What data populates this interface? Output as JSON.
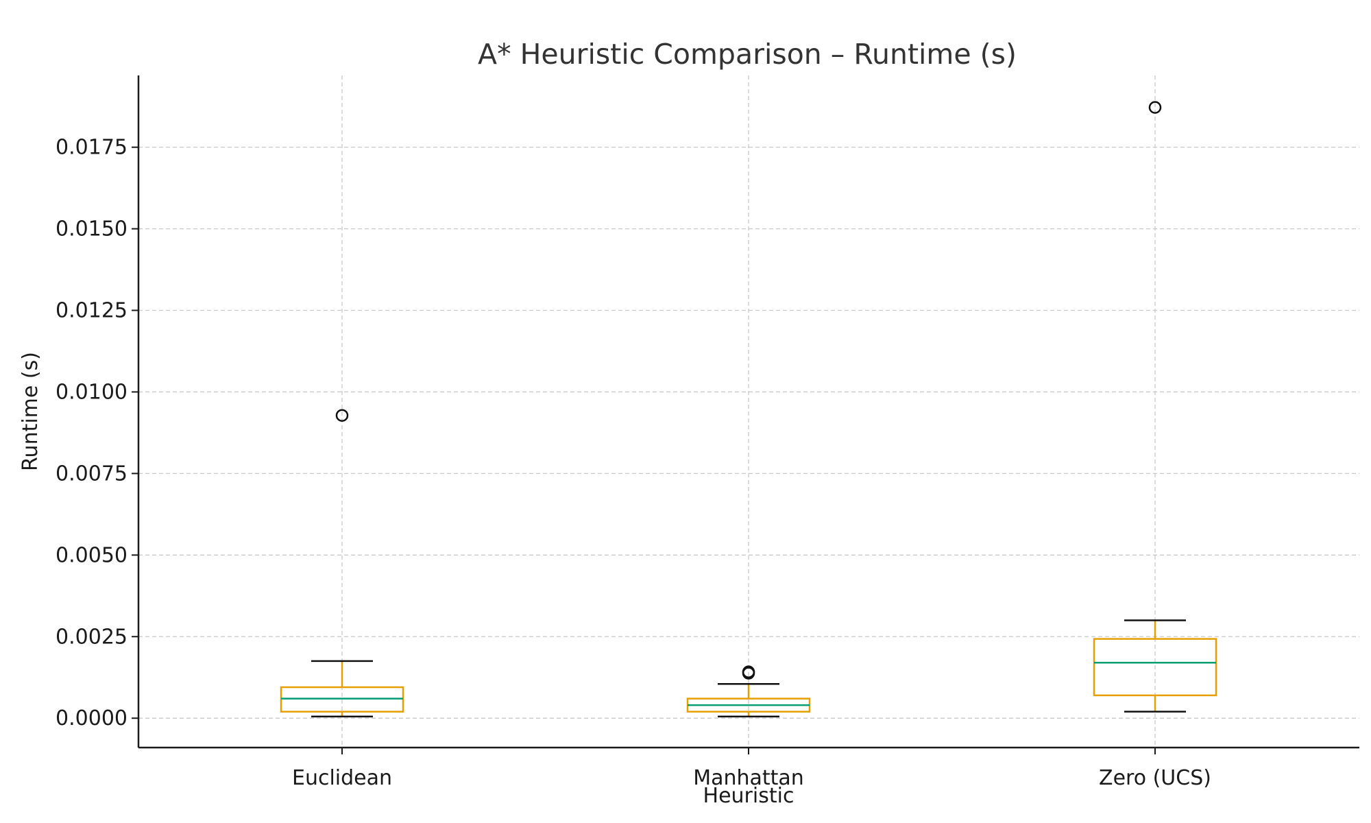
{
  "chart_data": {
    "type": "box",
    "title": "A* Heuristic Comparison – Runtime (s)",
    "xlabel": "Heuristic",
    "ylabel": "Runtime (s)",
    "ylim": [
      -0.0009,
      0.0197
    ],
    "yticks": [
      "0.0000",
      "0.0025",
      "0.0050",
      "0.0075",
      "0.0100",
      "0.0125",
      "0.0150",
      "0.0175"
    ],
    "ytick_values": [
      0.0,
      0.0025,
      0.005,
      0.0075,
      0.01,
      0.0125,
      0.015,
      0.0175
    ],
    "grid": true,
    "categories": [
      "Euclidean",
      "Manhattan",
      "Zero (UCS)"
    ],
    "boxes": [
      {
        "label": "Euclidean",
        "whisker_low": 5e-05,
        "q1": 0.0002,
        "median": 0.0006,
        "q3": 0.00095,
        "whisker_high": 0.00175,
        "outliers": [
          0.00928
        ]
      },
      {
        "label": "Manhattan",
        "whisker_low": 5e-05,
        "q1": 0.0002,
        "median": 0.0004,
        "q3": 0.0006,
        "whisker_high": 0.00105,
        "outliers": [
          0.00138,
          0.00142
        ]
      },
      {
        "label": "Zero (UCS)",
        "whisker_low": 0.0002,
        "q1": 0.0007,
        "median": 0.0017,
        "q3": 0.00243,
        "whisker_high": 0.003,
        "outliers": [
          0.01872
        ]
      }
    ],
    "colors": {
      "box": "#e69f00",
      "median": "#009e73",
      "cap": "#111111",
      "flier": "#111111",
      "grid": "#c8c8c8"
    }
  }
}
